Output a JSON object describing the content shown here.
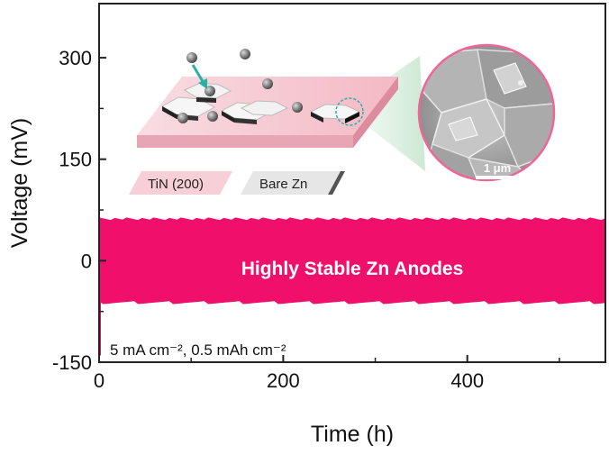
{
  "chart_data": {
    "type": "area",
    "xlabel": "Time (h)",
    "ylabel": "Voltage (mV)",
    "xlim": [
      0,
      550
    ],
    "ylim": [
      -150,
      380
    ],
    "xticks": [
      0,
      200,
      400
    ],
    "yticks": [
      -150,
      0,
      150,
      300
    ],
    "series": [
      {
        "x": [
          0,
          550
        ],
        "upper": [
          62,
          62
        ],
        "lower": [
          -62,
          -62
        ],
        "color": "#f0106b"
      }
    ],
    "band_text": "Highly Stable Zn Anodes",
    "condition": "5 mA cm⁻², 0.5 mAh cm⁻²",
    "inset": {
      "tags": [
        "TiN (200)",
        "Bare Zn"
      ],
      "scale_bar": "1 μm"
    },
    "grid": false
  },
  "colors": {
    "accent": "#f0106b",
    "axis": "#222222",
    "platform_top": "#f7c9d1",
    "platform_side": "#e9a3b1",
    "sem_border": "#f06598",
    "arrow": "#2ab0a6"
  }
}
